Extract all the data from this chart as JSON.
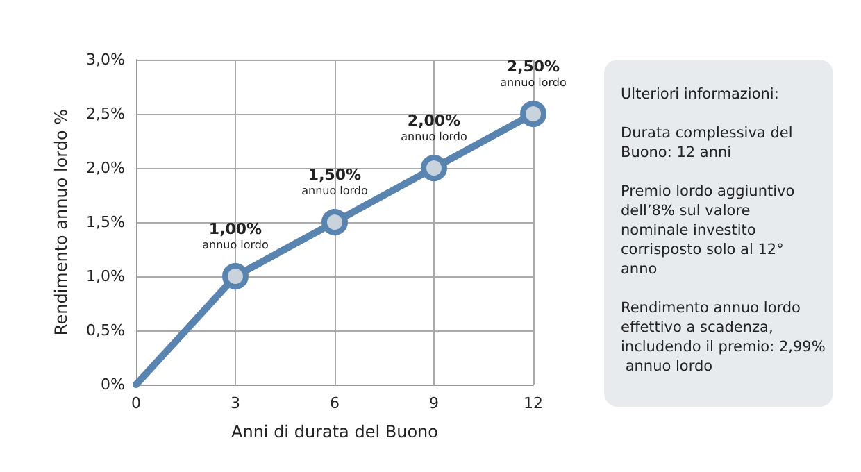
{
  "chart_data": {
    "type": "line",
    "xlabel": "Anni di durata del Buono",
    "ylabel": "Rendimento annuo lordo %",
    "x": [
      0,
      3,
      6,
      9,
      12
    ],
    "series": [
      {
        "color": "#5a84b0",
        "values": [
          0,
          1.0,
          1.5,
          2.0,
          2.5
        ],
        "value_labels": [
          null,
          "1,00%\nannuo lordo",
          "1,50%\nannuo lordo",
          "2,00%\nannuo lordo",
          "2,50%\nannuo lordo"
        ]
      }
    ],
    "xlim": [
      0,
      12
    ],
    "xticks": [
      0,
      3,
      6,
      9,
      12
    ],
    "ylim": [
      0,
      3
    ],
    "yticks": [
      {
        "value": 0,
        "label": "0%"
      },
      {
        "value": 0.5,
        "label": "0,5%"
      },
      {
        "value": 1,
        "label": "1,0%"
      },
      {
        "value": 1.5,
        "label": "1,5%"
      },
      {
        "value": 2,
        "label": "2,0%"
      },
      {
        "value": 2.5,
        "label": "2,5%"
      },
      {
        "value": 3,
        "label": "3,0%"
      }
    ],
    "grid": true,
    "marker": "circle",
    "line_style": "solid",
    "annotations": [
      "Ulteriori informazioni:",
      "Durata complessiva del Buono: 12 anni",
      "Premio lordo aggiuntivo dell’8% sul valore nominale investito corrisposto solo al 12° anno",
      "Rendimento annuo lordo effettivo a scadenza, includendo il premio: 2,99% annuo lordo"
    ]
  }
}
